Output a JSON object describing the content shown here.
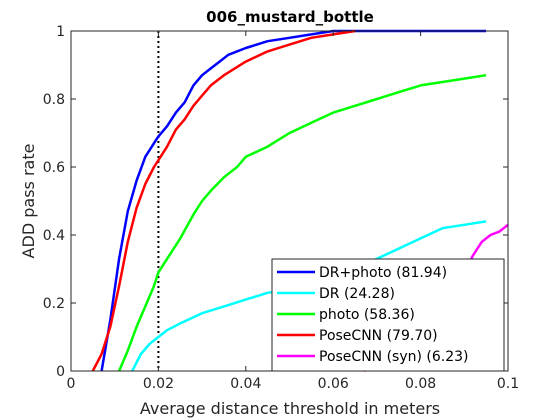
{
  "chart_data": {
    "type": "line",
    "title": "006_mustard_bottle",
    "xlabel": "Average distance threshold in meters",
    "ylabel": "ADD pass rate",
    "xlim": [
      0,
      0.1
    ],
    "ylim": [
      0,
      1
    ],
    "xticks": [
      "0",
      "0.02",
      "0.04",
      "0.06",
      "0.08",
      "0.1"
    ],
    "yticks": [
      "0",
      "0.2",
      "0.4",
      "0.6",
      "0.8",
      "1"
    ],
    "grid": false,
    "legend_position": "bottom-right",
    "reference_line": {
      "x": 0.02,
      "style": "dotted",
      "color": "#000000"
    },
    "series": [
      {
        "name": "DR+photo (81.94)",
        "color": "#0000ff",
        "x": [
          0.007,
          0.009,
          0.011,
          0.013,
          0.015,
          0.017,
          0.019,
          0.02,
          0.022,
          0.024,
          0.026,
          0.028,
          0.03,
          0.032,
          0.034,
          0.036,
          0.04,
          0.045,
          0.05,
          0.055,
          0.06,
          0.065,
          0.07,
          0.08,
          0.09,
          0.095
        ],
        "y": [
          0.0,
          0.15,
          0.33,
          0.47,
          0.56,
          0.63,
          0.67,
          0.69,
          0.72,
          0.76,
          0.79,
          0.84,
          0.87,
          0.89,
          0.91,
          0.93,
          0.95,
          0.97,
          0.98,
          0.99,
          1.0,
          1.0,
          1.0,
          1.0,
          1.0,
          1.0
        ]
      },
      {
        "name": "DR (24.28)",
        "color": "#00ffff",
        "x": [
          0.014,
          0.016,
          0.018,
          0.02,
          0.022,
          0.025,
          0.03,
          0.035,
          0.04,
          0.045,
          0.05,
          0.055,
          0.06,
          0.065,
          0.07,
          0.075,
          0.08,
          0.085,
          0.09,
          0.095
        ],
        "y": [
          0.0,
          0.05,
          0.08,
          0.1,
          0.12,
          0.14,
          0.17,
          0.19,
          0.21,
          0.23,
          0.24,
          0.26,
          0.28,
          0.3,
          0.33,
          0.36,
          0.39,
          0.42,
          0.43,
          0.44
        ]
      },
      {
        "name": "photo (58.36)",
        "color": "#00ff00",
        "x": [
          0.011,
          0.013,
          0.015,
          0.017,
          0.019,
          0.02,
          0.022,
          0.025,
          0.028,
          0.03,
          0.032,
          0.035,
          0.038,
          0.04,
          0.045,
          0.05,
          0.055,
          0.06,
          0.065,
          0.07,
          0.075,
          0.08,
          0.085,
          0.09,
          0.095
        ],
        "y": [
          0.0,
          0.06,
          0.13,
          0.19,
          0.25,
          0.29,
          0.33,
          0.39,
          0.46,
          0.5,
          0.53,
          0.57,
          0.6,
          0.63,
          0.66,
          0.7,
          0.73,
          0.76,
          0.78,
          0.8,
          0.82,
          0.84,
          0.85,
          0.86,
          0.87
        ]
      },
      {
        "name": "PoseCNN (79.70)",
        "color": "#ff0000",
        "x": [
          0.005,
          0.007,
          0.009,
          0.011,
          0.013,
          0.015,
          0.017,
          0.019,
          0.02,
          0.022,
          0.024,
          0.026,
          0.028,
          0.03,
          0.032,
          0.035,
          0.04,
          0.045,
          0.05,
          0.055,
          0.06,
          0.065
        ],
        "y": [
          0.0,
          0.05,
          0.13,
          0.25,
          0.38,
          0.48,
          0.55,
          0.6,
          0.62,
          0.66,
          0.71,
          0.74,
          0.78,
          0.81,
          0.84,
          0.87,
          0.91,
          0.94,
          0.96,
          0.98,
          0.99,
          1.0
        ]
      },
      {
        "name": "PoseCNN (syn) (6.23)",
        "color": "#ff00ff",
        "x": [
          0.067,
          0.07,
          0.073,
          0.076,
          0.079,
          0.082,
          0.085,
          0.088,
          0.09,
          0.092,
          0.094,
          0.096,
          0.098,
          0.1
        ],
        "y": [
          0.0,
          0.02,
          0.04,
          0.06,
          0.09,
          0.13,
          0.18,
          0.24,
          0.29,
          0.34,
          0.38,
          0.4,
          0.41,
          0.43
        ]
      }
    ]
  }
}
